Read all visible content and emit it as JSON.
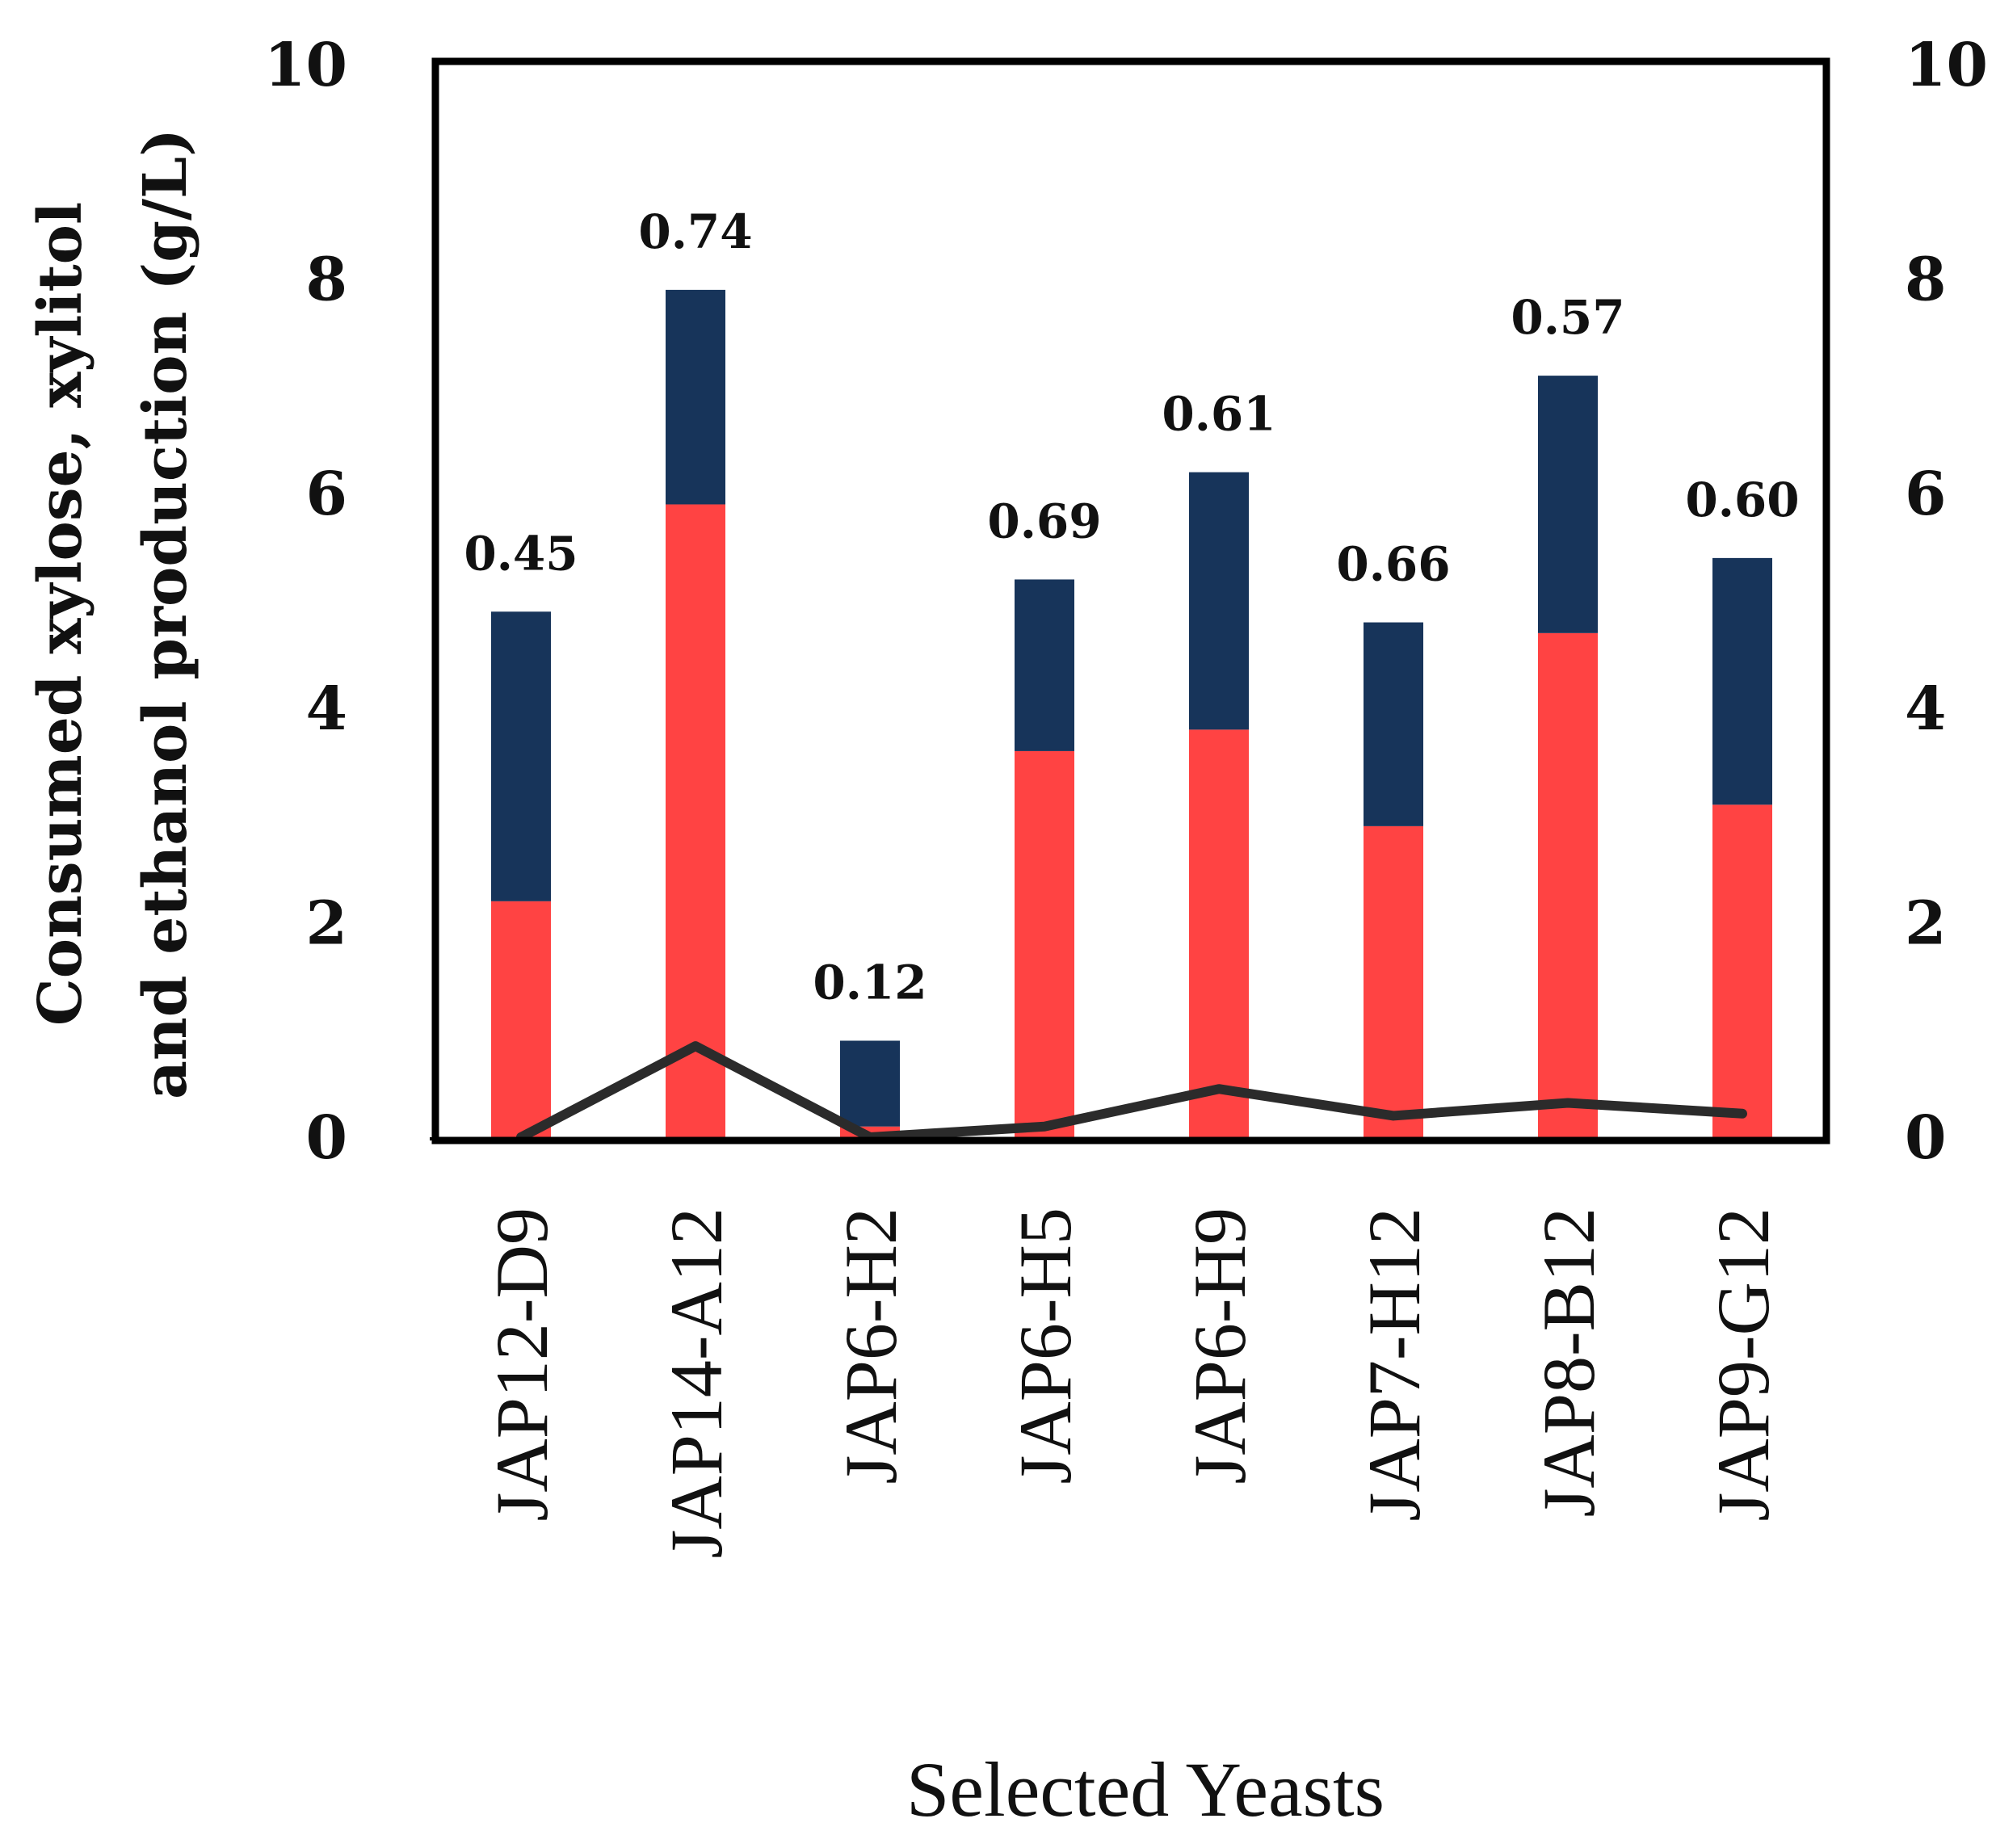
{
  "chart_data": {
    "type": "bar",
    "stacked": true,
    "title": "",
    "xlabel": "Selected Yeasts",
    "ylabel_lines": [
      "Consumed xylose, xylitol",
      "and ethanol production (g/L)"
    ],
    "ylim": [
      0,
      10
    ],
    "y_ticks": [
      "0",
      "2",
      "4",
      "6",
      "8",
      "10"
    ],
    "y2_ticks": [
      "0",
      "2",
      "4",
      "6",
      "8",
      "10"
    ],
    "categories": [
      "JAP12-D9",
      "JAP14-A12",
      "JAP6-H2",
      "JAP6-H5",
      "JAP6-H9",
      "JAP7-H12",
      "JAP8-B12",
      "JAP9-G12"
    ],
    "series": [
      {
        "name": "bottom segment",
        "color": "#FF4343",
        "values": [
          2.2,
          5.9,
          0.1,
          3.6,
          3.8,
          2.9,
          4.7,
          3.1
        ]
      },
      {
        "name": "top segment",
        "color": "#17345A",
        "values": [
          2.7,
          2.0,
          0.8,
          1.6,
          2.4,
          1.9,
          2.4,
          2.3
        ]
      },
      {
        "name": "line",
        "color": "#2B2B2B",
        "type": "line",
        "values": [
          0.0,
          0.85,
          0.0,
          0.1,
          0.45,
          0.2,
          0.32,
          0.22
        ]
      }
    ],
    "data_labels": [
      "0.45",
      "0.74",
      "0.12",
      "0.69",
      "0.61",
      "0.66",
      "0.57",
      "0.60"
    ]
  }
}
